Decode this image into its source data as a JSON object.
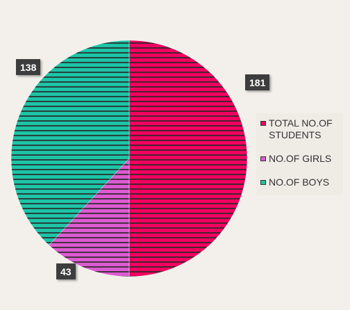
{
  "chart_data": {
    "type": "pie",
    "slices": [
      {
        "name": "TOTAL NO.OF STUDENTS",
        "value": 181,
        "color": "#f2005f",
        "label": "181"
      },
      {
        "name": "NO.OF GIRLS",
        "value": 43,
        "color": "#dd5ad2",
        "label": "43"
      },
      {
        "name": "NO.OF BOYS",
        "value": 138,
        "color": "#1dc4a7",
        "label": "138"
      }
    ],
    "legend_placement": "right",
    "hatch": "horizontal-lines"
  }
}
